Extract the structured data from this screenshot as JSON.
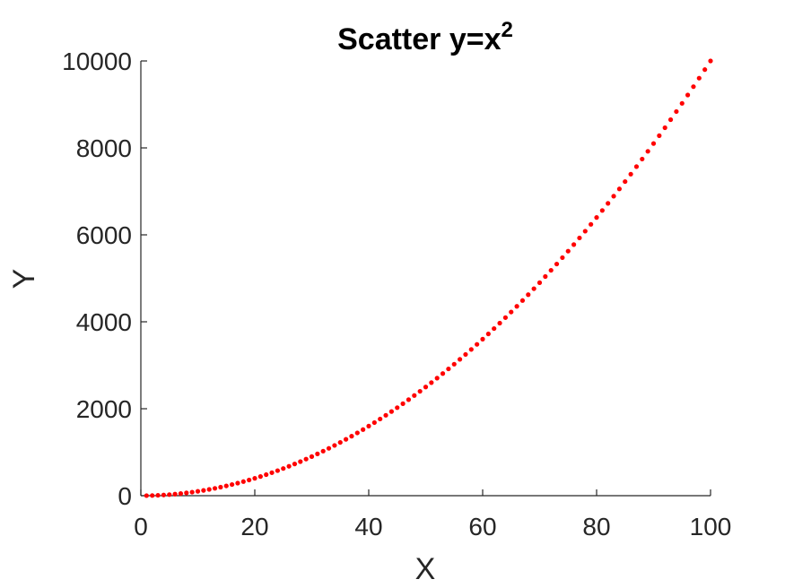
{
  "chart_data": {
    "type": "scatter",
    "title": "Scatter y=x",
    "title_superscript": "2",
    "xlabel": "X",
    "ylabel": "Y",
    "xlim": [
      0,
      100
    ],
    "ylim": [
      0,
      10000
    ],
    "x_ticks": [
      0,
      20,
      40,
      60,
      80,
      100
    ],
    "y_ticks": [
      0,
      2000,
      4000,
      6000,
      8000,
      10000
    ],
    "x_tick_labels": [
      "0",
      "20",
      "40",
      "60",
      "80",
      "100"
    ],
    "y_tick_labels": [
      "0",
      "2000",
      "4000",
      "6000",
      "8000",
      "10000"
    ],
    "grid": false,
    "marker_color": "#ff0000",
    "axis_color": "#262626",
    "series": [
      {
        "x": [
          1,
          2,
          3,
          4,
          5,
          6,
          7,
          8,
          9,
          10,
          11,
          12,
          13,
          14,
          15,
          16,
          17,
          18,
          19,
          20,
          21,
          22,
          23,
          24,
          25,
          26,
          27,
          28,
          29,
          30,
          31,
          32,
          33,
          34,
          35,
          36,
          37,
          38,
          39,
          40,
          41,
          42,
          43,
          44,
          45,
          46,
          47,
          48,
          49,
          50,
          51,
          52,
          53,
          54,
          55,
          56,
          57,
          58,
          59,
          60,
          61,
          62,
          63,
          64,
          65,
          66,
          67,
          68,
          69,
          70,
          71,
          72,
          73,
          74,
          75,
          76,
          77,
          78,
          79,
          80,
          81,
          82,
          83,
          84,
          85,
          86,
          87,
          88,
          89,
          90,
          91,
          92,
          93,
          94,
          95,
          96,
          97,
          98,
          99,
          100
        ],
        "y": [
          1,
          4,
          9,
          16,
          25,
          36,
          49,
          64,
          81,
          100,
          121,
          144,
          169,
          196,
          225,
          256,
          289,
          324,
          361,
          400,
          441,
          484,
          529,
          576,
          625,
          676,
          729,
          784,
          841,
          900,
          961,
          1024,
          1089,
          1156,
          1225,
          1296,
          1369,
          1444,
          1521,
          1600,
          1681,
          1764,
          1849,
          1936,
          2025,
          2116,
          2209,
          2304,
          2401,
          2500,
          2601,
          2704,
          2809,
          2916,
          3025,
          3136,
          3249,
          3364,
          3481,
          3600,
          3721,
          3844,
          3969,
          4096,
          4225,
          4356,
          4489,
          4624,
          4761,
          4900,
          5041,
          5184,
          5329,
          5476,
          5625,
          5776,
          5929,
          6084,
          6241,
          6400,
          6561,
          6724,
          6889,
          7056,
          7225,
          7396,
          7569,
          7744,
          7921,
          8100,
          8281,
          8464,
          8649,
          8836,
          9025,
          9216,
          9409,
          9604,
          9801,
          10000
        ]
      }
    ]
  }
}
